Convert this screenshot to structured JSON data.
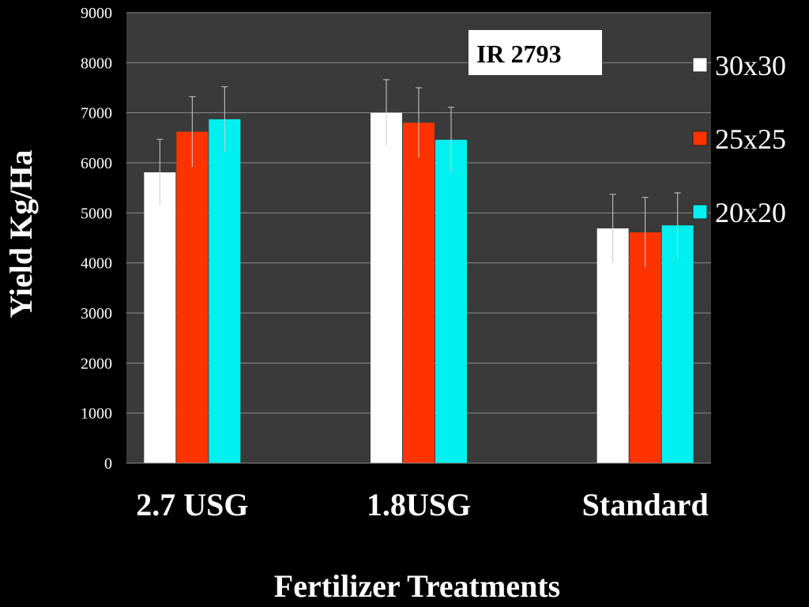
{
  "chart_data": {
    "type": "bar",
    "title": "",
    "xlabel": "Fertilizer Treatments",
    "ylabel": "Yield Kg/Ha",
    "ylim": [
      0,
      9000
    ],
    "yticks": [
      "0",
      "1000",
      "2000",
      "3000",
      "4000",
      "5000",
      "6000",
      "7000",
      "8000",
      "9000"
    ],
    "categories": [
      "2.7 USG",
      "1.8USG",
      "Standard"
    ],
    "series": [
      {
        "name": "30x30",
        "color": "#ffffff",
        "values": [
          5810,
          7000,
          4690
        ],
        "errors": [
          660,
          660,
          680
        ]
      },
      {
        "name": "25x25",
        "color": "#ff3300",
        "values": [
          6620,
          6800,
          4610
        ],
        "errors": [
          700,
          700,
          700
        ]
      },
      {
        "name": "20x20",
        "color": "#00f0f0",
        "values": [
          6870,
          6460,
          4750
        ],
        "errors": [
          650,
          650,
          650
        ]
      }
    ],
    "grid": true,
    "legend_position": "right",
    "annotation": "IR 2793",
    "plot_background": "#3a3a3a",
    "page_background": "#000000"
  }
}
